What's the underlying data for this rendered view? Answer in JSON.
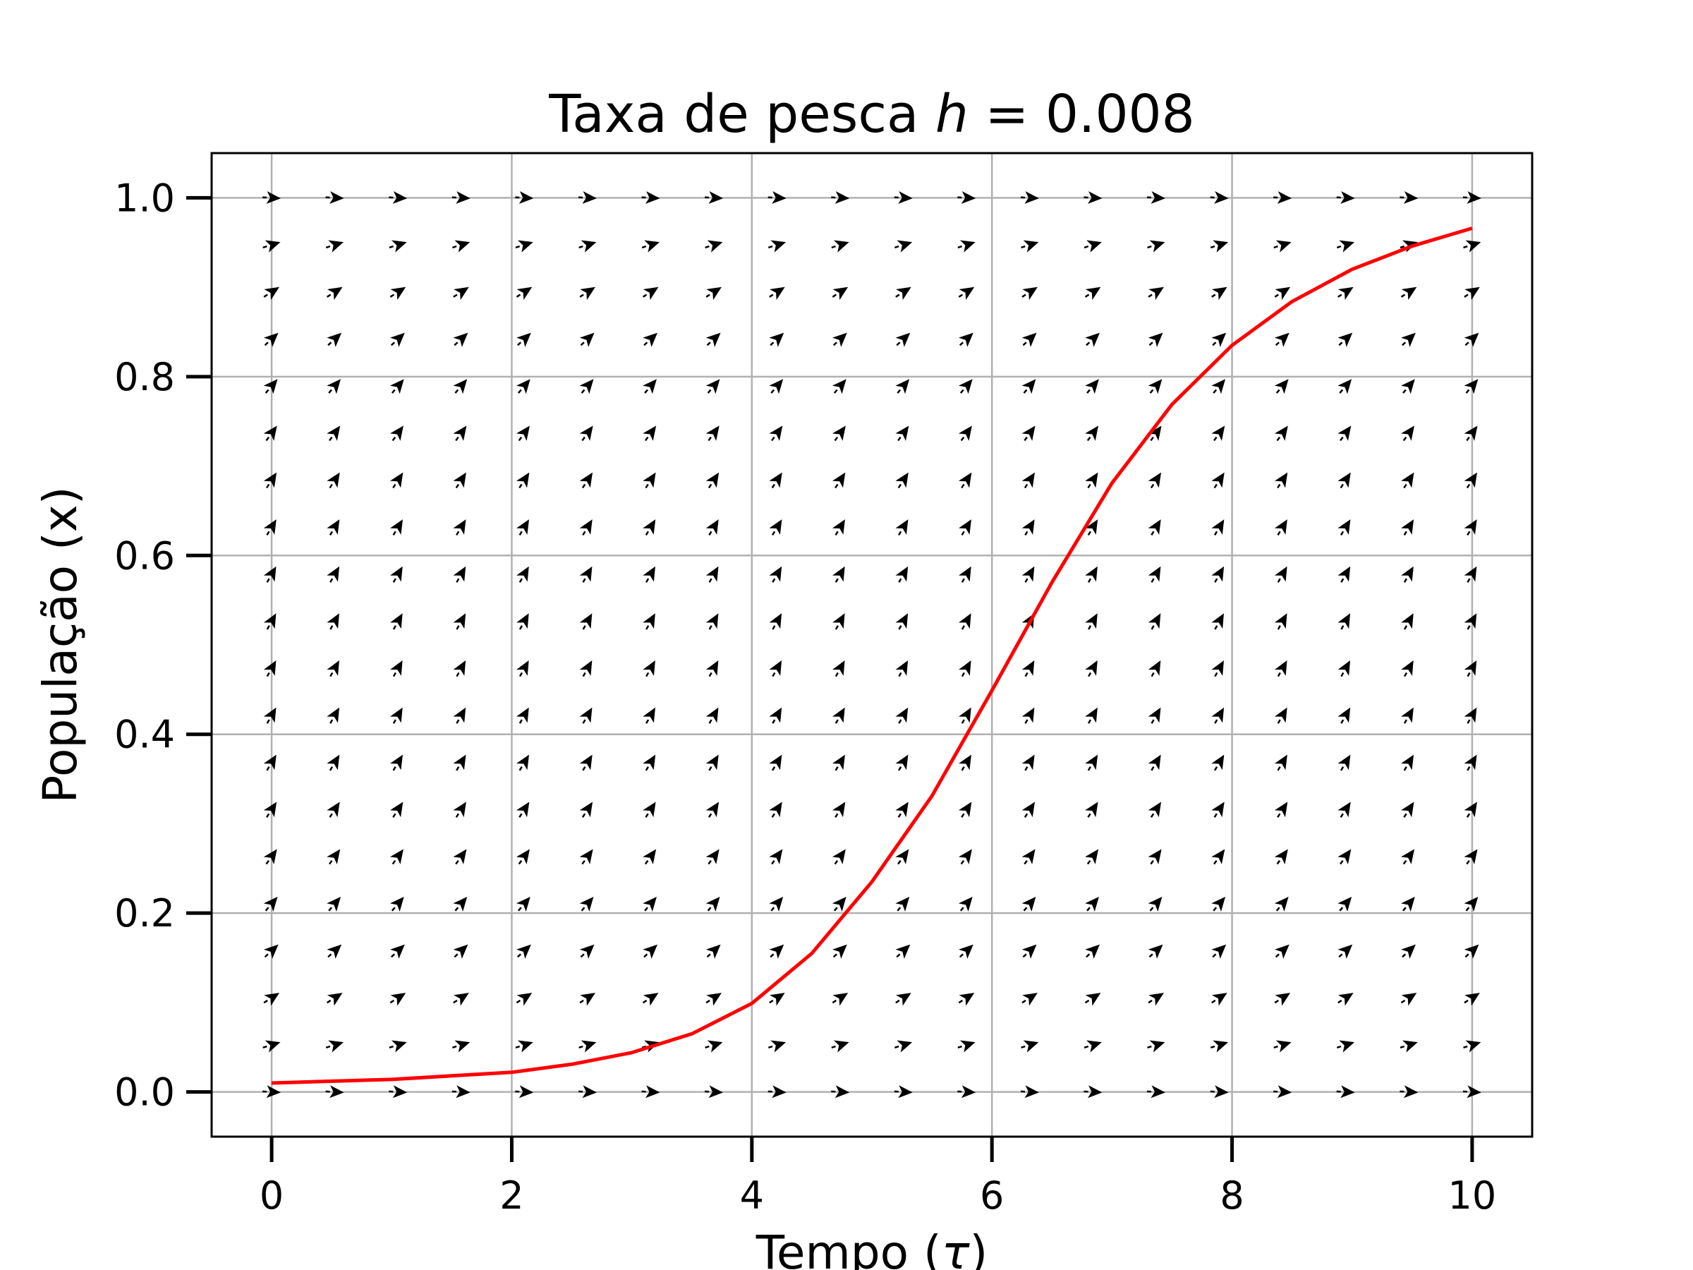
{
  "chart_data": {
    "type": "line",
    "title_text": "Taxa de pesca ",
    "title_var": "h",
    "title_eq": " = 0.008",
    "xlabel_text": "Tempo (",
    "xlabel_var": "τ",
    "xlabel_close": ")",
    "ylabel": "População (x)",
    "xlim": [
      -0.5,
      10.5
    ],
    "ylim": [
      -0.05,
      1.05
    ],
    "xticks": [
      0,
      2,
      4,
      6,
      8,
      10
    ],
    "xtick_labels": [
      "0",
      "2",
      "4",
      "6",
      "8",
      "10"
    ],
    "yticks": [
      0.0,
      0.2,
      0.4,
      0.6,
      0.8,
      1.0
    ],
    "ytick_labels": [
      "0.0",
      "0.2",
      "0.4",
      "0.6",
      "0.8",
      "1.0"
    ],
    "grid": true,
    "series": [
      {
        "color": "#ff0000",
        "x": [
          0,
          0.5,
          1,
          1.5,
          2,
          2.5,
          3,
          3.5,
          4,
          4.5,
          5,
          5.5,
          6,
          6.5,
          7,
          7.5,
          8,
          8.5,
          9,
          9.5,
          10
        ],
        "y": [
          0.01,
          0.012,
          0.014,
          0.018,
          0.022,
          0.031,
          0.044,
          0.065,
          0.099,
          0.155,
          0.235,
          0.331,
          0.449,
          0.57,
          0.681,
          0.769,
          0.835,
          0.884,
          0.92,
          0.946,
          0.966
        ]
      }
    ],
    "direction_field": {
      "equation": "dx/dτ = x(1-x) - h",
      "h": 0.008,
      "color": "#000000",
      "x": [
        0,
        0.526,
        1.053,
        1.579,
        2.105,
        2.632,
        3.158,
        3.684,
        4.211,
        4.737,
        5.263,
        5.789,
        6.316,
        6.842,
        7.368,
        7.895,
        8.421,
        8.947,
        9.474,
        10
      ],
      "y": [
        0.0,
        0.0526,
        0.1053,
        0.1579,
        0.2105,
        0.2632,
        0.3158,
        0.3684,
        0.4211,
        0.4737,
        0.5263,
        0.5789,
        0.6316,
        0.6842,
        0.7368,
        0.7895,
        0.8421,
        0.8947,
        0.9474,
        1.0
      ]
    }
  }
}
